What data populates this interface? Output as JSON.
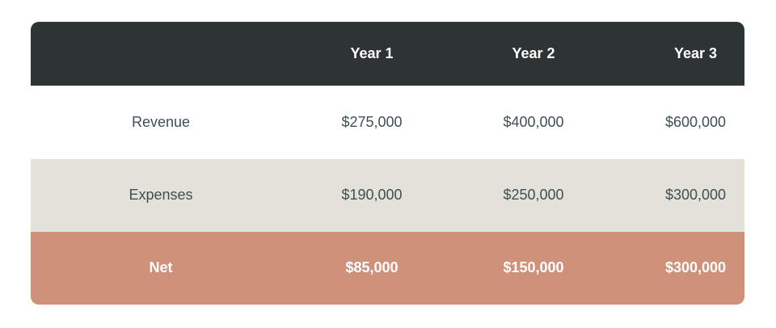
{
  "chart_data": {
    "type": "table",
    "columns": [
      "",
      "Year 1",
      "Year 2",
      "Year 3"
    ],
    "rows": [
      {
        "label": "Revenue",
        "values": [
          "$275,000",
          "$400,000",
          "$600,000"
        ],
        "emphasis": false
      },
      {
        "label": "Expenses",
        "values": [
          "$190,000",
          "$250,000",
          "$300,000"
        ],
        "emphasis": false
      },
      {
        "label": "Net",
        "values": [
          "$85,000",
          "$150,000",
          "$300,000"
        ],
        "emphasis": true
      }
    ]
  },
  "colors": {
    "header_bg": "#2e3433",
    "header_text": "#ffffff",
    "row_default_bg": "#ffffff",
    "row_alt_bg": "#e4e1d9",
    "net_row_bg": "#d0917a",
    "net_row_text": "#ffffff",
    "body_text": "#3e4f55",
    "page_bg": "#ffffff"
  }
}
